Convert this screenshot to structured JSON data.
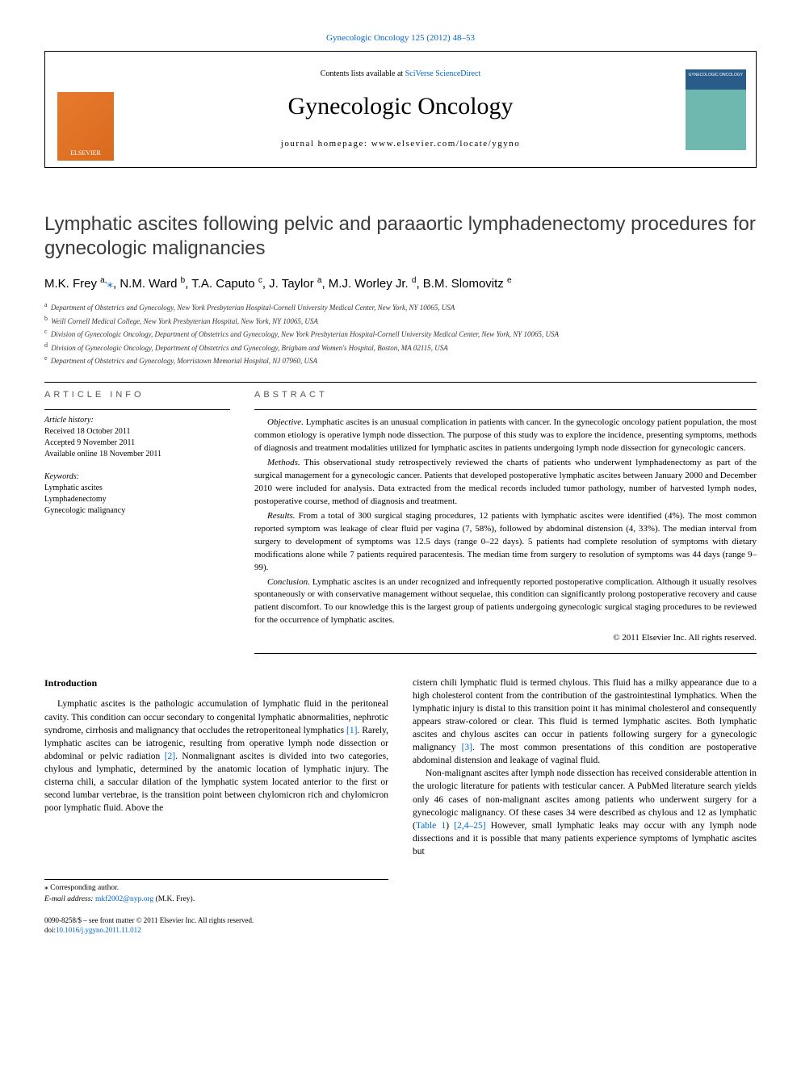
{
  "top_citation": "Gynecologic Oncology 125 (2012) 48–53",
  "header": {
    "contents_prefix": "Contents lists available at ",
    "contents_link": "SciVerse ScienceDirect",
    "journal_title": "Gynecologic Oncology",
    "homepage_prefix": "journal homepage: ",
    "homepage_url": "www.elsevier.com/locate/ygyno",
    "publisher_name": "ELSEVIER"
  },
  "article": {
    "title": "Lymphatic ascites following pelvic and paraaortic lymphadenectomy procedures for gynecologic malignancies",
    "authors_html": "M.K. Frey <sup>a,</sup><span class=\"star\">⁎</span>, N.M. Ward <sup>b</sup>, T.A. Caputo <sup>c</sup>, J. Taylor <sup>a</sup>, M.J. Worley Jr. <sup>d</sup>, B.M. Slomovitz <sup>e</sup>",
    "affiliations": [
      {
        "sup": "a",
        "text": "Department of Obstetrics and Gynecology, New York Presbyterian Hospital-Cornell University Medical Center, New York, NY 10065, USA"
      },
      {
        "sup": "b",
        "text": "Weill Cornell Medical College, New York Presbyterian Hospital, New York, NY 10065, USA"
      },
      {
        "sup": "c",
        "text": "Division of Gynecologic Oncology, Department of Obstetrics and Gynecology, New York Presbyterian Hospital-Cornell University Medical Center, New York, NY 10065, USA"
      },
      {
        "sup": "d",
        "text": "Division of Gynecologic Oncology, Department of Obstetrics and Gynecology, Brigham and Women's Hospital, Boston, MA 02115, USA"
      },
      {
        "sup": "e",
        "text": "Department of Obstetrics and Gynecology, Morristown Memorial Hospital, NJ 07960, USA"
      }
    ]
  },
  "article_info": {
    "label": "ARTICLE INFO",
    "history_heading": "Article history:",
    "received": "Received 18 October 2011",
    "accepted": "Accepted 9 November 2011",
    "online": "Available online 18 November 2011",
    "keywords_heading": "Keywords:",
    "keywords": [
      "Lymphatic ascites",
      "Lymphadenectomy",
      "Gynecologic malignancy"
    ]
  },
  "abstract": {
    "label": "ABSTRACT",
    "paragraphs": [
      {
        "lead": "Objective.",
        "text": " Lymphatic ascites is an unusual complication in patients with cancer. In the gynecologic oncology patient population, the most common etiology is operative lymph node dissection. The purpose of this study was to explore the incidence, presenting symptoms, methods of diagnosis and treatment modalities utilized for lymphatic ascites in patients undergoing lymph node dissection for gynecologic cancers."
      },
      {
        "lead": "Methods.",
        "text": " This observational study retrospectively reviewed the charts of patients who underwent lymphadenectomy as part of the surgical management for a gynecologic cancer. Patients that developed postoperative lymphatic ascites between January 2000 and December 2010 were included for analysis. Data extracted from the medical records included tumor pathology, number of harvested lymph nodes, postoperative course, method of diagnosis and treatment."
      },
      {
        "lead": "Results.",
        "text": " From a total of 300 surgical staging procedures, 12 patients with lymphatic ascites were identified (4%). The most common reported symptom was leakage of clear fluid per vagina (7, 58%), followed by abdominal distension (4, 33%). The median interval from surgery to development of symptoms was 12.5 days (range 0–22 days). 5 patients had complete resolution of symptoms with dietary modifications alone while 7 patients required paracentesis. The median time from surgery to resolution of symptoms was 44 days (range 9–99)."
      },
      {
        "lead": "Conclusion.",
        "text": " Lymphatic ascites is an under recognized and infrequently reported postoperative complication. Although it usually resolves spontaneously or with conservative management without sequelae, this condition can significantly prolong postoperative recovery and cause patient discomfort. To our knowledge this is the largest group of patients undergoing gynecologic surgical staging procedures to be reviewed for the occurrence of lymphatic ascites."
      }
    ],
    "copyright": "© 2011 Elsevier Inc. All rights reserved."
  },
  "body": {
    "intro_heading": "Introduction",
    "col1": "Lymphatic ascites is the pathologic accumulation of lymphatic fluid in the peritoneal cavity. This condition can occur secondary to congenital lymphatic abnormalities, nephrotic syndrome, cirrhosis and malignancy that occludes the retroperitoneal lymphatics <a href=\"#\">[1]</a>. Rarely, lymphatic ascites can be iatrogenic, resulting from operative lymph node dissection or abdominal or pelvic radiation <a href=\"#\">[2]</a>. Nonmalignant ascites is divided into two categories, chylous and lymphatic, determined by the anatomic location of lymphatic injury. The cisterna chili, a saccular dilation of the lymphatic system located anterior to the first or second lumbar vertebrae, is the transition point between chylomicron rich and chylomicron poor lymphatic fluid. Above the",
    "col2_p1": "cistern chili lymphatic fluid is termed chylous. This fluid has a milky appearance due to a high cholesterol content from the contribution of the gastrointestinal lymphatics. When the lymphatic injury is distal to this transition point it has minimal cholesterol and consequently appears straw-colored or clear. This fluid is termed lymphatic ascites. Both lymphatic ascites and chylous ascites can occur in patients following surgery for a gynecologic malignancy <a href=\"#\">[3]</a>. The most common presentations of this condition are postoperative abdominal distension and leakage of vaginal fluid.",
    "col2_p2": "Non-malignant ascites after lymph node dissection has received considerable attention in the urologic literature for patients with testicular cancer. A PubMed literature search yields only 46 cases of non-malignant ascites among patients who underwent surgery for a gynecologic malignancy. Of these cases 34 were described as chylous and 12 as lymphatic (<a href=\"#\">Table 1</a>) <a href=\"#\">[2,4–25]</a> However, small lymphatic leaks may occur with any lymph node dissections and it is possible that many patients experience symptoms of lymphatic ascites but"
  },
  "footnotes": {
    "corresponding": "⁎ Corresponding author.",
    "email_label": "E-mail address: ",
    "email": "mkf2002@nyp.org",
    "email_attribution": " (M.K. Frey)."
  },
  "footer": {
    "front_matter": "0090-8258/$ – see front matter © 2011 Elsevier Inc. All rights reserved.",
    "doi_prefix": "doi:",
    "doi": "10.1016/j.ygyno.2011.11.012"
  }
}
